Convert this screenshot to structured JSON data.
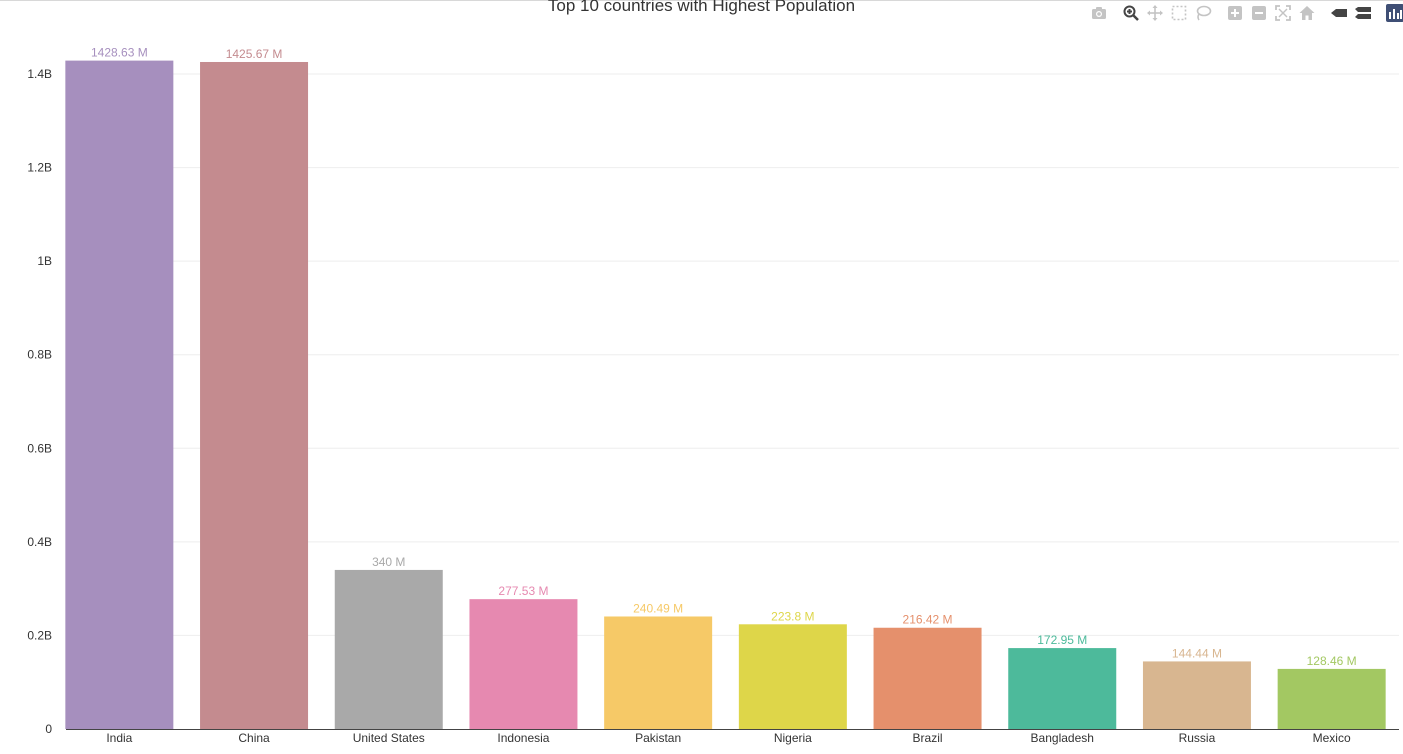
{
  "chart_data": {
    "type": "bar",
    "title": "Top 10 countries with Highest Population",
    "xlabel": "",
    "ylabel": "",
    "categories": [
      "India",
      "China",
      "United States",
      "Indonesia",
      "Pakistan",
      "Nigeria",
      "Brazil",
      "Bangladesh",
      "Russia",
      "Mexico"
    ],
    "values": [
      1428630000,
      1425670000,
      340000000,
      277530000,
      240490000,
      223800000,
      216420000,
      172950000,
      144440000,
      128460000
    ],
    "data_labels": [
      "1428.63 M",
      "1425.67 M",
      "340 M",
      "277.53 M",
      "240.49 M",
      "223.8 M",
      "216.42 M",
      "172.95 M",
      "144.44 M",
      "128.46 M"
    ],
    "colors": [
      "#a68fbe",
      "#c48b8f",
      "#a9a9a9",
      "#e689b0",
      "#f6c967",
      "#ded649",
      "#e5906c",
      "#4dba9b",
      "#d8b690",
      "#a3c862"
    ],
    "ylim": [
      0,
      1500000000
    ],
    "yticks": [
      0,
      200000000,
      400000000,
      600000000,
      800000000,
      1000000000,
      1200000000,
      1400000000
    ],
    "ytick_labels": [
      "0",
      "0.2B",
      "0.4B",
      "0.6B",
      "0.8B",
      "1B",
      "1.2B",
      "1.4B"
    ],
    "grid": true,
    "legend": "none"
  },
  "modebar": {
    "buttons": [
      "camera-icon",
      "zoom-icon",
      "pan-icon",
      "box-select-icon",
      "lasso-icon",
      "zoom-in-icon",
      "zoom-out-icon",
      "autoscale-icon",
      "reset-axes-icon",
      "spike-lines-icon",
      "compare-data-icon",
      "plotly-logo-icon"
    ]
  }
}
